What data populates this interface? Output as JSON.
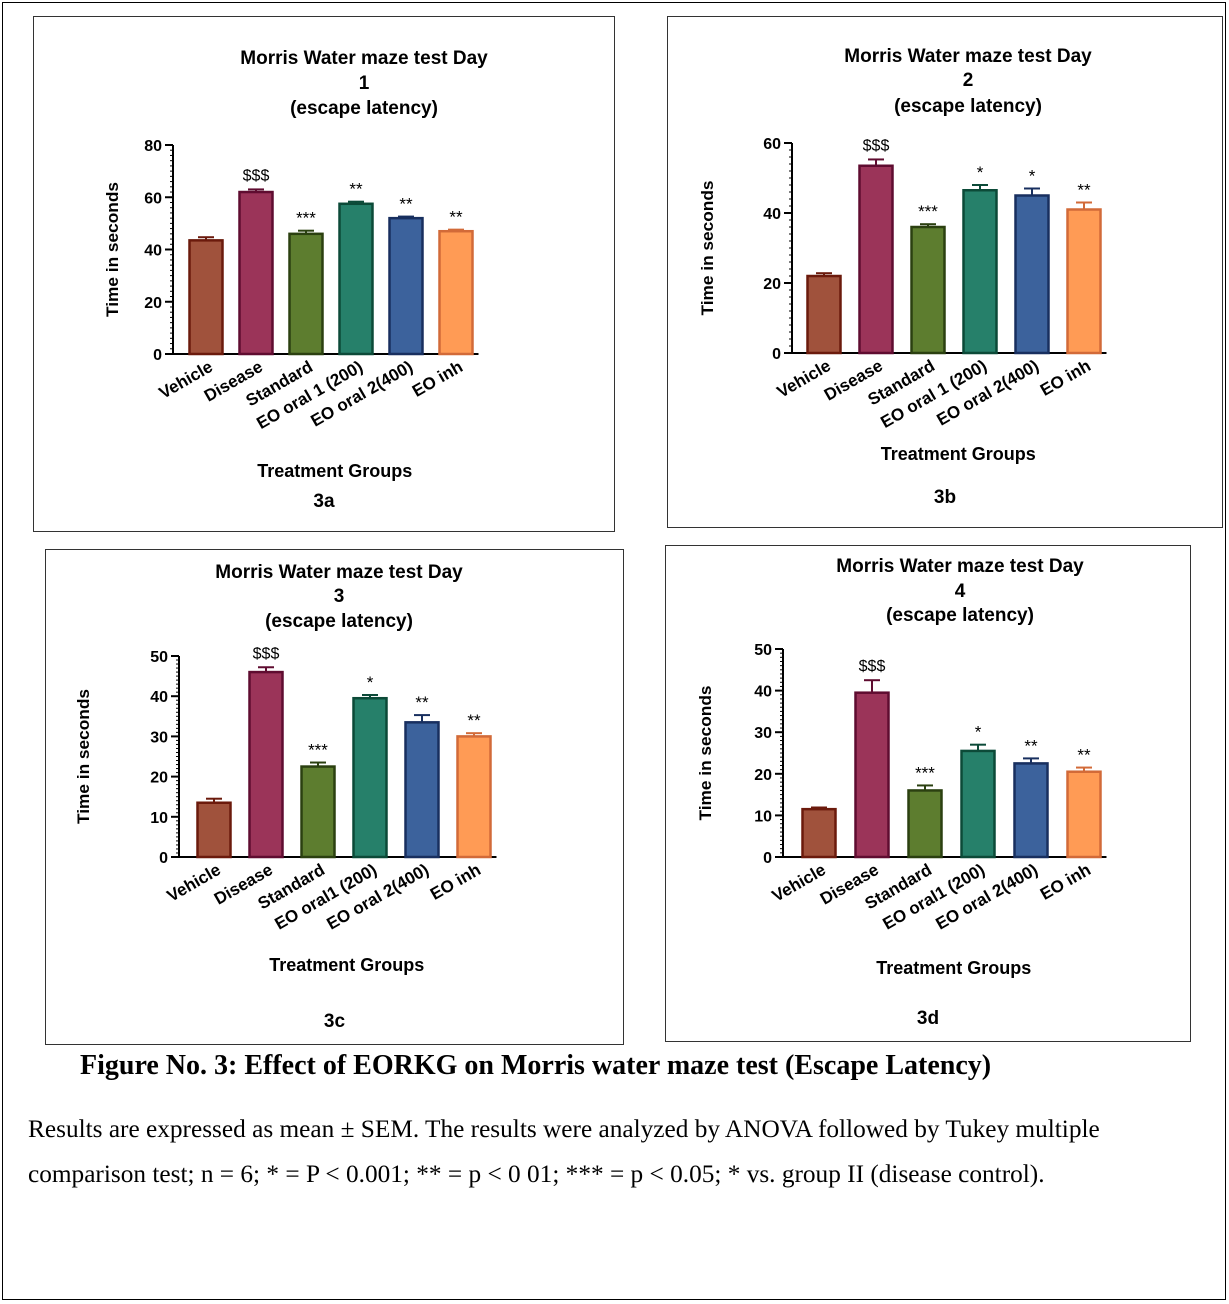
{
  "chart_data": [
    {
      "id": "3a",
      "type": "bar",
      "title_lines": [
        "Morris Water maze test Day",
        "1",
        "(escape latency)"
      ],
      "xlabel": "Treatment Groups",
      "ylabel": "Time in seconds",
      "ylim": [
        0,
        80
      ],
      "yticks": [
        0,
        20,
        40,
        60,
        80
      ],
      "categories": [
        "Vehicle",
        "Disease",
        "Standard",
        "EO oral 1 (200)",
        "EO oral 2(400)",
        "EO inh"
      ],
      "values": [
        43.5,
        62,
        46,
        57.5,
        52,
        47
      ],
      "errors": [
        1.2,
        1.0,
        1.2,
        0.8,
        0.6,
        0.6
      ],
      "annotations": [
        "",
        "$$$",
        "***",
        "**",
        "**",
        "**"
      ],
      "panel_label": "3a"
    },
    {
      "id": "3b",
      "type": "bar",
      "title_lines": [
        "Morris Water maze test Day",
        "2",
        "(escape latency)"
      ],
      "xlabel": "Treatment Groups",
      "ylabel": "Time in seconds",
      "ylim": [
        0,
        60
      ],
      "yticks": [
        0,
        20,
        40,
        60
      ],
      "categories": [
        "Vehicle",
        "Disease",
        "Standard",
        "EO oral 1 (200)",
        "EO oral 2(400)",
        "EO inh"
      ],
      "values": [
        22,
        53.5,
        36,
        46.5,
        45,
        41
      ],
      "errors": [
        0.8,
        1.8,
        0.8,
        1.5,
        2.0,
        2.0
      ],
      "annotations": [
        "",
        "$$$",
        "***",
        "*",
        "*",
        "**"
      ],
      "panel_label": "3b"
    },
    {
      "id": "3c",
      "type": "bar",
      "title_lines": [
        "Morris Water maze test Day",
        "3",
        "(escape latency)"
      ],
      "xlabel": "Treatment Groups",
      "ylabel": "Time in seconds",
      "ylim": [
        0,
        50
      ],
      "yticks": [
        0,
        10,
        20,
        30,
        40,
        50
      ],
      "categories": [
        "Vehicle",
        "Disease",
        "Standard",
        "EO oral1 (200)",
        "EO oral 2(400)",
        "EO inh"
      ],
      "values": [
        13.5,
        46,
        22.5,
        39.5,
        33.5,
        30
      ],
      "errors": [
        1.0,
        1.2,
        1.0,
        0.8,
        1.8,
        0.8
      ],
      "annotations": [
        "",
        "$$$",
        "***",
        "*",
        "**",
        "**"
      ],
      "panel_label": "3c"
    },
    {
      "id": "3d",
      "type": "bar",
      "title_lines": [
        "Morris Water maze test Day",
        "4",
        "(escape latency)"
      ],
      "xlabel": "Treatment Groups",
      "ylabel": "Time in seconds",
      "ylim": [
        0,
        50
      ],
      "yticks": [
        0,
        10,
        20,
        30,
        40,
        50
      ],
      "categories": [
        "Vehicle",
        "Disease",
        "Standard",
        "EO oral1 (200)",
        "EO oral 2(400)",
        "EO inh"
      ],
      "values": [
        11.5,
        39.5,
        16,
        25.5,
        22.5,
        20.5
      ],
      "errors": [
        0.4,
        3.0,
        1.2,
        1.5,
        1.2,
        1.0
      ],
      "annotations": [
        "",
        "$$$",
        "***",
        "*",
        "**",
        "**"
      ],
      "panel_label": "3d"
    }
  ],
  "colors": {
    "fills": [
      "#a0523c",
      "#9b3459",
      "#5d7d2f",
      "#26806a",
      "#3c629c",
      "#ff9b55"
    ],
    "edges": [
      "#6b1a0c",
      "#5f0c30",
      "#2b4010",
      "#0c4a38",
      "#182f5f",
      "#d26a38"
    ]
  },
  "caption": {
    "title": "Figure No. 3: Effect of EORKG on Morris water maze test (Escape Latency)",
    "body": "Results are expressed as mean ± SEM. The results were analyzed by ANOVA followed by Tukey multiple comparison test; n = 6; * = P < 0.001; ** = p < 0 01; *** = p < 0.05; * vs. group II (disease control)."
  }
}
